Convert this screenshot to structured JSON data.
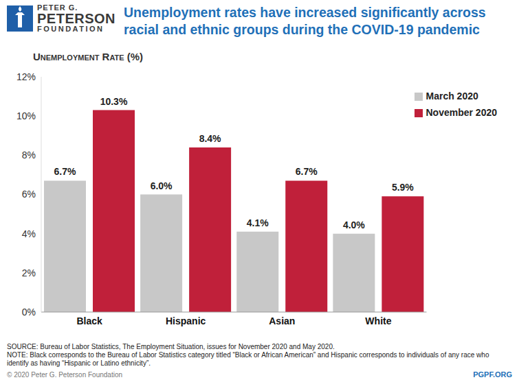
{
  "chart_data": {
    "type": "bar",
    "title": "Unemployment rates have increased significantly across racial and ethnic groups during the COVID-19 pandemic",
    "y_label": "Unemployment Rate (%)",
    "categories": [
      "Black",
      "Hispanic",
      "Asian",
      "White"
    ],
    "series": [
      {
        "name": "March 2020",
        "color": "#c8c8c8",
        "values": [
          6.7,
          6.0,
          4.1,
          4.0
        ],
        "value_labels": [
          "6.7%",
          "6.0%",
          "4.1%",
          "4.0%"
        ]
      },
      {
        "name": "November 2020",
        "color": "#c0203a",
        "values": [
          10.3,
          8.4,
          6.7,
          5.9
        ],
        "value_labels": [
          "10.3%",
          "8.4%",
          "6.7%",
          "5.9%"
        ]
      }
    ],
    "ylim": [
      0,
      12
    ],
    "yticks": [
      {
        "value": 0,
        "label": "0%"
      },
      {
        "value": 2,
        "label": "2%"
      },
      {
        "value": 4,
        "label": "4%"
      },
      {
        "value": 6,
        "label": "6%"
      },
      {
        "value": 8,
        "label": "8%"
      },
      {
        "value": 10,
        "label": "10%"
      },
      {
        "value": 12,
        "label": "12%"
      }
    ],
    "grid": false,
    "data_labels": true,
    "legend": "top-right"
  },
  "logo": [
    "PETER G.",
    "PETERSON",
    "FOUNDATION"
  ],
  "source": "SOURCE: Bureau of Labor Statistics, The Employment Situation, issues for November 2020 and May 2020.",
  "note": "NOTE: Black corresponds to the Bureau of Labor Statistics category titled “Black or African American” and Hispanic corresponds to individuals of any race who identify as having “Hispanic or Latino ethnicity”.",
  "copyright": "© 2020 Peter G. Peterson Foundation",
  "website": "PGPF.ORG"
}
